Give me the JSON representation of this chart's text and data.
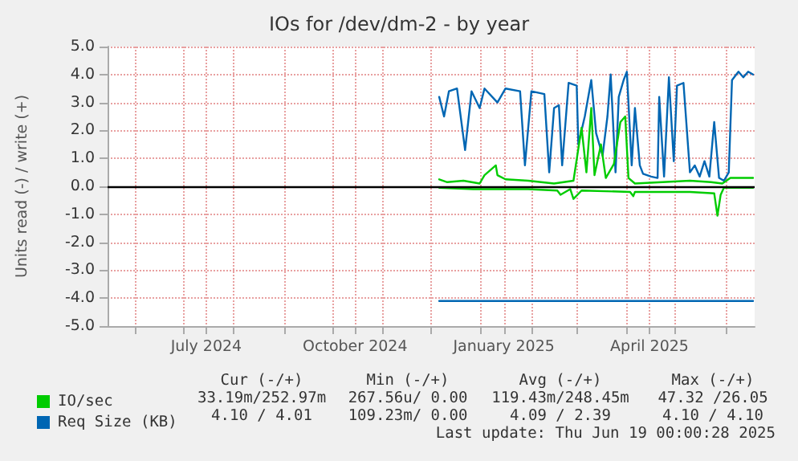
{
  "chart_data": {
    "type": "line",
    "title": "IOs for /dev/dm-2 - by year",
    "ylabel": "Units read (-) / write (+)",
    "xlim": [
      "2024-05-15",
      "2025-06-19"
    ],
    "xticks": [
      {
        "value": "2024-06-01",
        "label": null
      },
      {
        "value": "2024-07-01",
        "label": null
      },
      {
        "value": "2024-07-15",
        "label": "July 2024"
      },
      {
        "value": "2024-08-01",
        "label": null
      },
      {
        "value": "2024-09-01",
        "label": null
      },
      {
        "value": "2024-10-01",
        "label": null
      },
      {
        "value": "2024-10-15",
        "label": "October 2024"
      },
      {
        "value": "2024-11-01",
        "label": null
      },
      {
        "value": "2024-12-01",
        "label": null
      },
      {
        "value": "2025-01-01",
        "label": null
      },
      {
        "value": "2025-01-15",
        "label": "January 2025"
      },
      {
        "value": "2025-02-01",
        "label": null
      },
      {
        "value": "2025-03-01",
        "label": null
      },
      {
        "value": "2025-04-01",
        "label": null
      },
      {
        "value": "2025-04-15",
        "label": "April 2025"
      },
      {
        "value": "2025-05-01",
        "label": null
      },
      {
        "value": "2025-06-01",
        "label": null
      }
    ],
    "ylim": [
      -5,
      5
    ],
    "yticks": [
      {
        "value": 5,
        "label": "5.0"
      },
      {
        "value": 4,
        "label": "4.0"
      },
      {
        "value": 3,
        "label": "3.0"
      },
      {
        "value": 2,
        "label": "2.0"
      },
      {
        "value": 1,
        "label": "1.0"
      },
      {
        "value": 0,
        "label": "0.0"
      },
      {
        "value": -1,
        "label": "-1.0"
      },
      {
        "value": -2,
        "label": "-2.0"
      },
      {
        "value": -3,
        "label": "-3.0"
      },
      {
        "value": -4,
        "label": "-4.0"
      },
      {
        "value": -5,
        "label": "-5.0"
      }
    ],
    "grid": true,
    "legend": "bottom left",
    "ref_lines": [
      {
        "axis": "y",
        "value": 0,
        "color": "#000000"
      }
    ],
    "series": [
      {
        "name": "Req Size (KB)",
        "color": "#0066b3",
        "x": [
          "2024-12-06",
          "2024-12-09",
          "2024-12-12",
          "2024-12-17",
          "2024-12-22",
          "2024-12-26",
          "2024-12-31",
          "2025-01-03",
          "2025-01-11",
          "2025-01-16",
          "2025-01-25",
          "2025-01-28",
          "2025-02-01",
          "2025-02-09",
          "2025-02-12",
          "2025-02-15",
          "2025-02-18",
          "2025-02-20",
          "2025-02-24",
          "2025-03-01",
          "2025-03-02",
          "2025-03-06",
          "2025-03-10",
          "2025-03-13",
          "2025-03-17",
          "2025-03-20",
          "2025-03-22",
          "2025-03-25",
          "2025-03-27",
          "2025-03-30",
          "2025-04-01",
          "2025-04-04",
          "2025-04-06",
          "2025-04-09",
          "2025-04-11",
          "2025-04-16",
          "2025-04-20",
          "2025-04-21",
          "2025-04-24",
          "2025-04-27",
          "2025-04-30",
          "2025-05-02",
          "2025-05-06",
          "2025-05-10",
          "2025-05-13",
          "2025-05-16",
          "2025-05-19",
          "2025-05-22",
          "2025-05-25",
          "2025-05-28",
          "2025-05-31",
          "2025-06-03",
          "2025-06-05",
          "2025-06-09",
          "2025-06-12",
          "2025-06-15",
          "2025-06-18"
        ],
        "values": [
          3.2,
          2.5,
          3.4,
          3.5,
          1.3,
          3.4,
          2.8,
          3.5,
          3.0,
          3.5,
          3.4,
          0.75,
          3.4,
          3.3,
          0.5,
          2.8,
          2.9,
          0.75,
          3.7,
          3.6,
          1.5,
          2.5,
          3.8,
          1.9,
          1.1,
          2.5,
          4.0,
          0.5,
          3.2,
          3.8,
          4.1,
          0.75,
          2.8,
          0.75,
          0.45,
          0.35,
          0.3,
          3.2,
          0.35,
          3.9,
          0.9,
          3.6,
          3.7,
          0.5,
          0.75,
          0.35,
          0.9,
          0.35,
          2.3,
          0.3,
          0.2,
          0.5,
          3.8,
          4.1,
          3.9,
          4.1,
          4.0
        ]
      },
      {
        "color": "#0066b3",
        "x": [
          "2024-12-06",
          "2025-06-18"
        ],
        "values": [
          -4.1,
          -4.1
        ]
      },
      {
        "name": "IO/sec",
        "color": "#00cc00",
        "x": [
          "2024-12-06",
          "2024-12-11",
          "2024-12-21",
          "2024-12-31",
          "2025-01-03",
          "2025-01-10",
          "2025-01-11",
          "2025-01-16",
          "2025-01-30",
          "2025-02-15",
          "2025-02-27",
          "2025-03-04",
          "2025-03-07",
          "2025-03-10",
          "2025-03-12",
          "2025-03-16",
          "2025-03-19",
          "2025-03-24",
          "2025-03-28",
          "2025-03-31",
          "2025-04-02",
          "2025-04-06",
          "2025-04-23",
          "2025-05-10",
          "2025-05-23",
          "2025-05-30",
          "2025-06-04",
          "2025-06-18"
        ],
        "values": [
          0.25,
          0.15,
          0.2,
          0.1,
          0.4,
          0.75,
          0.4,
          0.25,
          0.2,
          0.1,
          0.2,
          2.1,
          0.5,
          2.8,
          0.4,
          1.5,
          0.3,
          0.8,
          2.3,
          2.5,
          0.3,
          0.1,
          0.15,
          0.2,
          0.15,
          0.1,
          0.3,
          0.3
        ]
      },
      {
        "color": "#00cc00",
        "x": [
          "2024-12-06",
          "2024-12-27",
          "2025-01-30",
          "2025-02-17",
          "2025-02-19",
          "2025-02-25",
          "2025-02-27",
          "2025-03-04",
          "2025-04-03",
          "2025-04-05",
          "2025-04-06",
          "2025-05-10",
          "2025-05-25",
          "2025-05-27",
          "2025-05-29",
          "2025-05-31",
          "2025-06-18"
        ],
        "values": [
          -0.05,
          -0.1,
          -0.1,
          -0.15,
          -0.3,
          -0.1,
          -0.45,
          -0.15,
          -0.2,
          -0.35,
          -0.2,
          -0.2,
          -0.25,
          -1.05,
          -0.3,
          -0.05,
          -0.05
        ]
      }
    ],
    "annotations": [
      "Cur (-/+)",
      "Min (-/+)",
      "Avg (-/+)",
      "Max (-/+)",
      "33.19m/252.97m",
      "267.56u/ 0.00",
      "119.43m/248.45m",
      "47.32 /26.05",
      "4.10 / 4.01",
      "109.23m/ 0.00",
      "4.09 / 2.39",
      "4.10 / 4.10",
      "Last update: Thu Jun 19 00:00:28 2025"
    ]
  }
}
